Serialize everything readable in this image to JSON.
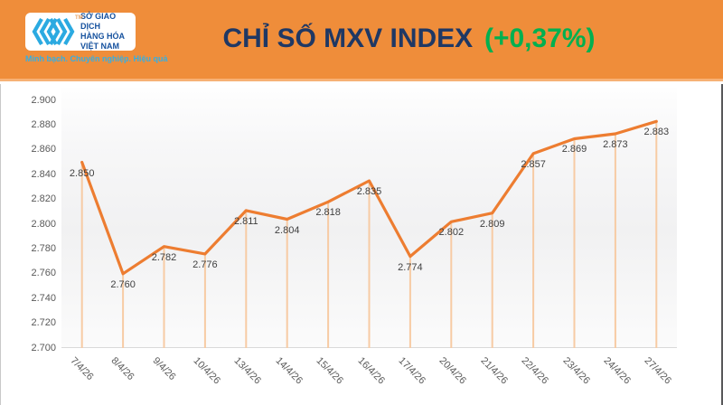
{
  "header": {
    "logo": {
      "org_lines": [
        "SỞ GIAO DỊCH",
        "HÀNG HÓA",
        "VIỆT NAM"
      ],
      "tagline": "Minh bạch. Chuyên nghiệp. Hiệu quả",
      "tm": "TM"
    },
    "title": "CHỈ SỐ MXV INDEX",
    "change": "(+0,37%)",
    "colors": {
      "band": "#EF8D3A",
      "band_bottom_strip": "#F7B175",
      "title": "#1F3864",
      "change": "#00B050",
      "logo_blue": "#2BAAE1",
      "logo_text_blue": "#15519E",
      "tagline_blue": "#35AFE4"
    }
  },
  "chart_data": {
    "type": "line",
    "title": "CHỈ SỐ MXV INDEX (+0,37%)",
    "categories": [
      "7/4/26",
      "8/4/26",
      "9/4/26",
      "10/4/26",
      "13/4/26",
      "14/4/26",
      "15/4/26",
      "16/4/26",
      "17/4/26",
      "20/4/26",
      "21/4/26",
      "22/4/26",
      "23/4/26",
      "24/4/26",
      "27/4/26"
    ],
    "values": [
      2850,
      2760,
      2782,
      2776,
      2811,
      2804,
      2818,
      2835,
      2774,
      2802,
      2809,
      2857,
      2869,
      2873,
      2883
    ],
    "point_labels": [
      "2.850",
      "2.760",
      "2.782",
      "2.776",
      "2.811",
      "2.804",
      "2.818",
      "2.835",
      "2.774",
      "2.802",
      "2.809",
      "2.857",
      "2.869",
      "2.873",
      "2.883"
    ],
    "y_ticks": [
      "2.700",
      "2.720",
      "2.740",
      "2.760",
      "2.780",
      "2.800",
      "2.820",
      "2.840",
      "2.860",
      "2.880",
      "2.900"
    ],
    "ylim": [
      2700,
      2900
    ],
    "xlabel": "",
    "ylabel": "",
    "grid": false,
    "legend": "none",
    "line_color": "#ED7D31",
    "dropline_color": "#F7CBA4",
    "point_label_color": "#404040",
    "tick_label_color": "#595959",
    "axis_line_color": "#d9d9d9"
  }
}
